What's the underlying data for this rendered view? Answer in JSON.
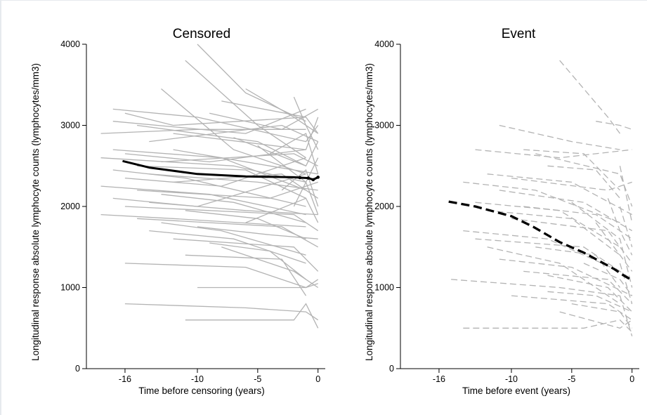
{
  "figure": {
    "colors": {
      "background": "#ffffff",
      "individual_lines": "#b3b3b3",
      "mean_curve": "#000000"
    }
  },
  "chart_data": [
    {
      "type": "line",
      "title": "Censored",
      "xlabel": "Time before censoring (years)",
      "ylabel": "Longitudinal response  absolute lymphocyte counts (lymphocytes/mm3)",
      "xlim": [
        -19.2,
        0.6
      ],
      "ylim": [
        0,
        4000
      ],
      "xticks": [
        -16,
        -10,
        -5,
        0
      ],
      "yticks": [
        0,
        1000,
        2000,
        3000,
        4000
      ],
      "individual_style": "solid",
      "mean_style": "solid",
      "series": [
        {
          "values": [
            [
              -16.2,
              2560
            ],
            [
              -14,
              2480
            ],
            [
              -10,
              2400
            ],
            [
              -6,
              2370
            ],
            [
              -2,
              2360
            ],
            [
              -1.5,
              2355
            ],
            [
              -0.8,
              2350
            ],
            [
              -0.4,
              2330
            ],
            [
              0,
              2360
            ]
          ]
        }
      ],
      "individuals": [
        [
          [
            -10,
            4000
          ],
          [
            -6,
            3400
          ],
          [
            -1,
            3050
          ]
        ],
        [
          [
            -11,
            3800
          ],
          [
            -5,
            3000
          ],
          [
            -1,
            2600
          ]
        ],
        [
          [
            -13,
            3450
          ],
          [
            -7,
            2700
          ],
          [
            -1,
            2400
          ]
        ],
        [
          [
            -6,
            3450
          ],
          [
            -2,
            3100
          ],
          [
            0,
            2900
          ]
        ],
        [
          [
            -2,
            3350
          ],
          [
            -1,
            3000
          ],
          [
            0,
            2700
          ]
        ],
        [
          [
            -17,
            3200
          ],
          [
            -10,
            3100
          ],
          [
            -1,
            2800
          ],
          [
            0,
            3000
          ]
        ],
        [
          [
            -16,
            3150
          ],
          [
            -12,
            3000
          ],
          [
            -1,
            3100
          ]
        ],
        [
          [
            -17,
            3050
          ],
          [
            -6,
            2900
          ],
          [
            -1,
            3200
          ]
        ],
        [
          [
            -15,
            3000
          ],
          [
            -5,
            2800
          ],
          [
            -1,
            2500
          ]
        ],
        [
          [
            -18,
            2900
          ],
          [
            -10,
            2950
          ],
          [
            -1,
            2950
          ]
        ],
        [
          [
            -14,
            2800
          ],
          [
            -3,
            3000
          ],
          [
            0,
            2800
          ]
        ],
        [
          [
            -17,
            2700
          ],
          [
            -8,
            2600
          ],
          [
            -1,
            2200
          ]
        ],
        [
          [
            -12,
            2700
          ],
          [
            -4,
            2500
          ],
          [
            0,
            2400
          ]
        ],
        [
          [
            -16,
            2650
          ],
          [
            -9,
            2550
          ],
          [
            -1,
            2700
          ]
        ],
        [
          [
            -18,
            2600
          ],
          [
            -7,
            2500
          ],
          [
            -1,
            2300
          ]
        ],
        [
          [
            -13,
            2550
          ],
          [
            -2,
            2650
          ],
          [
            0,
            2500
          ]
        ],
        [
          [
            -15,
            2500
          ],
          [
            -6,
            2450
          ],
          [
            -1,
            2100
          ]
        ],
        [
          [
            -17,
            2450
          ],
          [
            -11,
            2350
          ],
          [
            -1,
            2000
          ]
        ],
        [
          [
            -14,
            2400
          ],
          [
            -5,
            2300
          ],
          [
            0,
            2200
          ]
        ],
        [
          [
            -16,
            2350
          ],
          [
            -8,
            2250
          ],
          [
            -1,
            2600
          ]
        ],
        [
          [
            -12,
            2300
          ],
          [
            -3,
            2400
          ],
          [
            0,
            2100
          ]
        ],
        [
          [
            -18,
            2250
          ],
          [
            -9,
            2150
          ],
          [
            -1,
            1900
          ]
        ],
        [
          [
            -15,
            2200
          ],
          [
            -4,
            2100
          ],
          [
            0,
            2300
          ]
        ],
        [
          [
            -13,
            2150
          ],
          [
            -7,
            2050
          ],
          [
            -1,
            1800
          ]
        ],
        [
          [
            -17,
            2100
          ],
          [
            -10,
            2000
          ],
          [
            -1,
            2400
          ]
        ],
        [
          [
            -14,
            2050
          ],
          [
            -6,
            1950
          ],
          [
            0,
            1900
          ]
        ],
        [
          [
            -16,
            2000
          ],
          [
            -2,
            1900
          ],
          [
            0,
            1700
          ]
        ],
        [
          [
            -11,
            1950
          ],
          [
            -5,
            1850
          ],
          [
            -1,
            1600
          ]
        ],
        [
          [
            -18,
            1900
          ],
          [
            -12,
            1850
          ],
          [
            -1,
            1750
          ]
        ],
        [
          [
            -15,
            1850
          ],
          [
            -3,
            1750
          ],
          [
            0,
            1500
          ]
        ],
        [
          [
            -13,
            1800
          ],
          [
            -8,
            1700
          ],
          [
            -1,
            1400
          ]
        ],
        [
          [
            -10,
            1750
          ],
          [
            -4,
            1650
          ],
          [
            0,
            1600
          ]
        ],
        [
          [
            -14,
            1700
          ],
          [
            -7,
            1600
          ],
          [
            -1,
            1300
          ]
        ],
        [
          [
            -12,
            1600
          ],
          [
            -2,
            1500
          ],
          [
            0,
            1200
          ]
        ],
        [
          [
            -9,
            1550
          ],
          [
            -4,
            1450
          ],
          [
            -1,
            1100
          ]
        ],
        [
          [
            -16,
            1300
          ],
          [
            -6,
            1250
          ],
          [
            -1,
            1000
          ],
          [
            0,
            1100
          ]
        ],
        [
          [
            -11,
            1400
          ],
          [
            -3,
            1350
          ],
          [
            -1,
            900
          ]
        ],
        [
          [
            -8,
            1500
          ],
          [
            -2,
            1200
          ],
          [
            0,
            1000
          ]
        ],
        [
          [
            -10,
            1000
          ],
          [
            -1,
            1000
          ],
          [
            0,
            1050
          ]
        ],
        [
          [
            -16,
            800
          ],
          [
            -6,
            750
          ],
          [
            -1,
            700
          ],
          [
            0,
            600
          ]
        ],
        [
          [
            -11,
            600
          ],
          [
            -2,
            600
          ],
          [
            -1,
            800
          ],
          [
            0,
            500
          ]
        ],
        [
          [
            -12,
            2900
          ],
          [
            -1,
            2700
          ],
          [
            0,
            3100
          ]
        ],
        [
          [
            -9,
            3150
          ],
          [
            -3,
            2950
          ],
          [
            0,
            3200
          ]
        ],
        [
          [
            -7,
            2850
          ],
          [
            -1,
            2500
          ],
          [
            0,
            2800
          ]
        ],
        [
          [
            -5,
            2750
          ],
          [
            -1,
            2300
          ],
          [
            0,
            2600
          ]
        ],
        [
          [
            -4,
            2650
          ],
          [
            -1,
            2900
          ],
          [
            0,
            2400
          ]
        ],
        [
          [
            -3,
            2200
          ],
          [
            -1,
            2450
          ],
          [
            0,
            2000
          ]
        ],
        [
          [
            -2,
            2000
          ],
          [
            -1,
            2300
          ],
          [
            0,
            1900
          ]
        ],
        [
          [
            -6,
            1800
          ],
          [
            -1,
            2100
          ],
          [
            0,
            1800
          ]
        ],
        [
          [
            -8,
            3300
          ],
          [
            -1,
            3100
          ],
          [
            0,
            2900
          ]
        ]
      ]
    },
    {
      "type": "line",
      "title": "Event",
      "xlabel": "Time before event (years)",
      "ylabel": "Longitudinal response  absolute lymphocyte counts (lymphocytes/mm3)",
      "xlim": [
        -19.2,
        0.6
      ],
      "ylim": [
        0,
        4000
      ],
      "xticks": [
        -16,
        -10,
        -5,
        0
      ],
      "yticks": [
        0,
        1000,
        2000,
        3000,
        4000
      ],
      "individual_style": "dashed",
      "mean_style": "dashed",
      "series": [
        {
          "values": [
            [
              -15.2,
              2060
            ],
            [
              -13,
              2000
            ],
            [
              -10,
              1880
            ],
            [
              -8.2,
              1750
            ],
            [
              -6,
              1560
            ],
            [
              -4,
              1430
            ],
            [
              -2.5,
              1310
            ],
            [
              -1.5,
              1230
            ],
            [
              -0.7,
              1150
            ],
            [
              0,
              1090
            ]
          ]
        }
      ],
      "individuals": [
        [
          [
            -6,
            3800
          ],
          [
            -2,
            3100
          ],
          [
            -1,
            2900
          ]
        ],
        [
          [
            -3,
            3050
          ],
          [
            -1,
            3000
          ],
          [
            0,
            2950
          ]
        ],
        [
          [
            -11,
            3000
          ],
          [
            -5,
            2800
          ],
          [
            -1,
            2700
          ]
        ],
        [
          [
            -9,
            2700
          ],
          [
            -4,
            2650
          ],
          [
            -1,
            2200
          ]
        ],
        [
          [
            -13,
            2700
          ],
          [
            -6,
            2600
          ],
          [
            0,
            2700
          ]
        ],
        [
          [
            -7,
            2500
          ],
          [
            -3,
            2450
          ],
          [
            -1,
            2100
          ]
        ],
        [
          [
            -12,
            2400
          ],
          [
            -5,
            2300
          ],
          [
            0,
            1900
          ]
        ],
        [
          [
            -10,
            2350
          ],
          [
            -2,
            2200
          ],
          [
            0,
            2300
          ]
        ],
        [
          [
            -14,
            2300
          ],
          [
            -8,
            2200
          ],
          [
            -1,
            1800
          ]
        ],
        [
          [
            -11,
            2200
          ],
          [
            -4,
            2050
          ],
          [
            0,
            1700
          ]
        ],
        [
          [
            -13,
            2050
          ],
          [
            -6,
            1950
          ],
          [
            -1,
            1500
          ]
        ],
        [
          [
            -9,
            2000
          ],
          [
            -3,
            1900
          ],
          [
            0,
            1600
          ]
        ],
        [
          [
            -12,
            1950
          ],
          [
            -5,
            1850
          ],
          [
            -1,
            1400
          ]
        ],
        [
          [
            -10,
            1850
          ],
          [
            -2,
            1700
          ],
          [
            0,
            1300
          ]
        ],
        [
          [
            -14,
            1700
          ],
          [
            -7,
            1600
          ],
          [
            -1,
            1200
          ]
        ],
        [
          [
            -13,
            1600
          ],
          [
            -4,
            1500
          ],
          [
            0,
            1100
          ]
        ],
        [
          [
            -8,
            1500
          ],
          [
            -3,
            1400
          ],
          [
            -1,
            1000
          ]
        ],
        [
          [
            -11,
            1350
          ],
          [
            -5,
            1250
          ],
          [
            0,
            900
          ]
        ],
        [
          [
            -9,
            1200
          ],
          [
            -2,
            1100
          ],
          [
            0,
            800
          ]
        ],
        [
          [
            -15,
            1100
          ],
          [
            -6,
            1000
          ],
          [
            -1,
            900
          ]
        ],
        [
          [
            -7,
            950
          ],
          [
            -3,
            900
          ],
          [
            0,
            700
          ]
        ],
        [
          [
            -10,
            900
          ],
          [
            -2,
            800
          ],
          [
            0,
            600
          ]
        ],
        [
          [
            -5,
            800
          ],
          [
            -1,
            700
          ],
          [
            0,
            500
          ]
        ],
        [
          [
            -14,
            500
          ],
          [
            -4,
            500
          ],
          [
            -1,
            600
          ],
          [
            0,
            450
          ]
        ],
        [
          [
            -6,
            700
          ],
          [
            -1,
            500
          ],
          [
            0,
            600
          ]
        ],
        [
          [
            -4,
            1300
          ],
          [
            -1,
            1100
          ],
          [
            0,
            900
          ]
        ],
        [
          [
            -3,
            1800
          ],
          [
            -1,
            1400
          ],
          [
            0,
            1200
          ]
        ],
        [
          [
            -2,
            2100
          ],
          [
            -1,
            1700
          ],
          [
            0,
            1400
          ]
        ],
        [
          [
            -8,
            2650
          ],
          [
            -1,
            2400
          ],
          [
            0,
            2000
          ]
        ],
        [
          [
            -5,
            2050
          ],
          [
            -1,
            1600
          ],
          [
            0,
            1000
          ]
        ],
        [
          [
            -12,
            1500
          ],
          [
            -6,
            1300
          ],
          [
            -1,
            800
          ]
        ],
        [
          [
            -7,
            1150
          ],
          [
            -2,
            1000
          ],
          [
            0,
            700
          ]
        ],
        [
          [
            -1,
            2500
          ],
          [
            0,
            1800
          ]
        ],
        [
          [
            -1,
            2000
          ],
          [
            0,
            1500
          ]
        ],
        [
          [
            -1,
            900
          ],
          [
            0,
            400
          ]
        ],
        [
          [
            -1,
            1300
          ],
          [
            0,
            800
          ]
        ]
      ]
    }
  ]
}
